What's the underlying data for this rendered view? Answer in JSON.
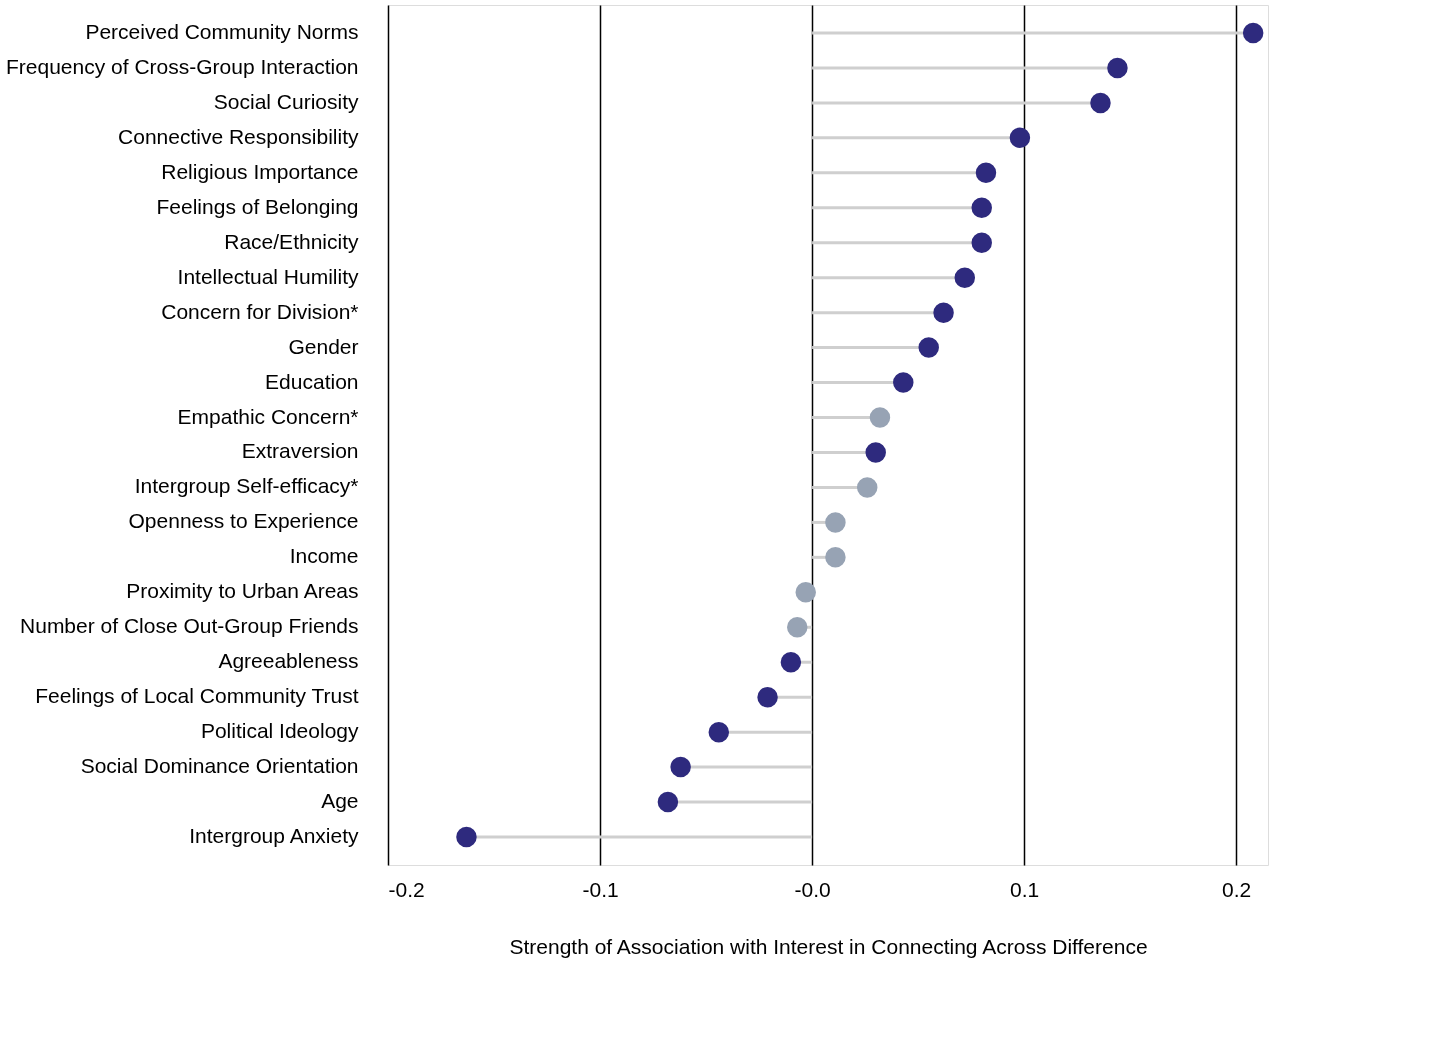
{
  "chart_data": {
    "type": "lollipop",
    "xlabel": "Strength of Association with Interest in Connecting Across Difference",
    "categories": [
      "Perceived Community Norms",
      "Frequency of Cross-Group Interaction",
      "Social Curiosity",
      "Connective Responsibility",
      "Religious Importance",
      "Feelings of Belonging",
      "Race/Ethnicity",
      "Intellectual Humility",
      "Concern for Division*",
      "Gender",
      "Education",
      "Empathic Concern*",
      "Extraversion",
      "Intergroup Self-efficacy*",
      "Openness to Experience",
      "Income",
      "Proximity to Urban Areas",
      "Number of Close Out-Group Friends",
      "Agreeableness",
      "Feelings of Local Community Trust",
      "Political Ideology",
      "Social Dominance Orientation",
      "Age",
      "Intergroup Anxiety"
    ],
    "orientation": "horizontal",
    "values": [
      0.208,
      0.144,
      0.136,
      0.098,
      0.082,
      0.08,
      0.08,
      0.072,
      0.062,
      0.055,
      0.043,
      0.032,
      0.03,
      0.026,
      0.011,
      0.011,
      -0.003,
      -0.007,
      -0.01,
      -0.021,
      -0.044,
      -0.062,
      -0.068,
      -0.163
    ],
    "colors": [
      "#2e2a7e",
      "#2e2a7e",
      "#2e2a7e",
      "#2e2a7e",
      "#2e2a7e",
      "#2e2a7e",
      "#2e2a7e",
      "#2e2a7e",
      "#2e2a7e",
      "#2e2a7e",
      "#2e2a7e",
      "#97a3b4",
      "#2e2a7e",
      "#97a3b4",
      "#97a3b4",
      "#97a3b4",
      "#97a3b4",
      "#97a3b4",
      "#2e2a7e",
      "#2e2a7e",
      "#2e2a7e",
      "#2e2a7e",
      "#2e2a7e",
      "#2e2a7e"
    ],
    "xlim": [
      -0.2,
      0.215
    ],
    "xticks": [
      -0.2,
      -0.1,
      {
        "value": 0,
        "label": "-0.0"
      },
      0.1,
      0.2
    ],
    "grid": "x",
    "marker": "circle"
  }
}
